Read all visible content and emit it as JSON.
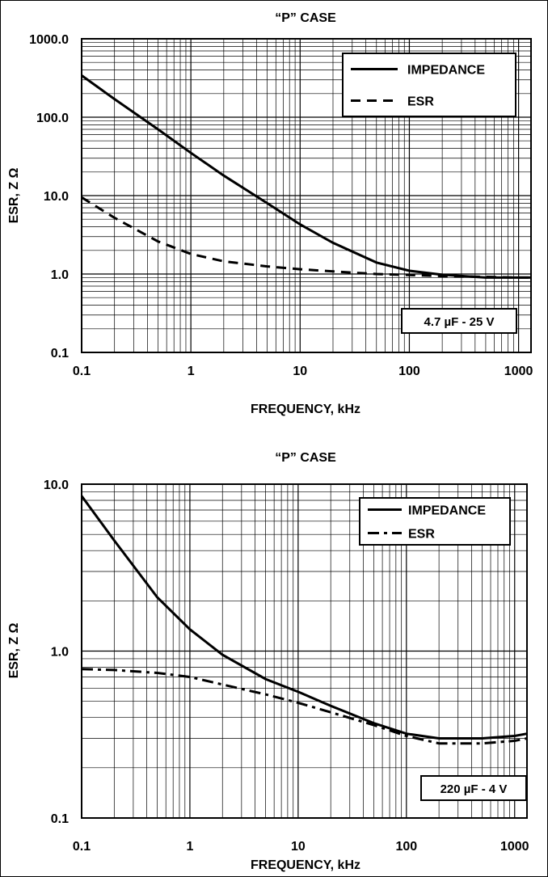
{
  "chart_data": [
    {
      "type": "line",
      "title": "“P” CASE",
      "xlabel": "FREQUENCY, kHz",
      "ylabel": "ESR, Z Ω",
      "x_scale": "log",
      "y_scale": "log",
      "xlim": [
        0.1,
        1300
      ],
      "ylim": [
        0.1,
        1000
      ],
      "x_ticks": [
        "0.1",
        "1",
        "10",
        "100",
        "1000"
      ],
      "y_ticks": [
        "0.1",
        "1.0",
        "10.0",
        "100.0",
        "1000.0"
      ],
      "grid": true,
      "legend_position": "top-right",
      "annotation": "4.7 µF - 25 V",
      "series": [
        {
          "name": "IMPEDANCE",
          "style": "solid",
          "x": [
            0.1,
            0.2,
            0.5,
            1,
            2,
            5,
            10,
            20,
            50,
            100,
            200,
            500,
            1000,
            1300
          ],
          "y": [
            340,
            170,
            70,
            35,
            18,
            8,
            4.3,
            2.5,
            1.4,
            1.1,
            0.98,
            0.9,
            0.9,
            0.9
          ]
        },
        {
          "name": "ESR",
          "style": "dashed",
          "x": [
            0.1,
            0.2,
            0.5,
            1,
            2,
            5,
            10,
            20,
            50,
            100,
            200,
            500,
            1000,
            1300
          ],
          "y": [
            9.5,
            5.2,
            2.6,
            1.8,
            1.45,
            1.25,
            1.15,
            1.08,
            1.0,
            0.97,
            0.94,
            0.92,
            0.9,
            0.9
          ]
        }
      ]
    },
    {
      "type": "line",
      "title": "“P” CASE",
      "xlabel": "FREQUENCY, kHz",
      "ylabel": "ESR, Z Ω",
      "x_scale": "log",
      "y_scale": "log",
      "xlim": [
        0.1,
        1300
      ],
      "ylim": [
        0.1,
        10
      ],
      "x_ticks": [
        "0.1",
        "1",
        "10",
        "100",
        "1000"
      ],
      "y_ticks": [
        "0.1",
        "1.0",
        "10.0"
      ],
      "grid": true,
      "legend_position": "top-right",
      "annotation": "220 µF - 4 V",
      "series": [
        {
          "name": "IMPEDANCE",
          "style": "solid",
          "x": [
            0.1,
            0.2,
            0.5,
            1,
            2,
            5,
            10,
            20,
            50,
            100,
            200,
            500,
            1000,
            1300
          ],
          "y": [
            8.5,
            4.6,
            2.1,
            1.35,
            0.95,
            0.68,
            0.57,
            0.47,
            0.37,
            0.32,
            0.3,
            0.3,
            0.31,
            0.32
          ]
        },
        {
          "name": "ESR",
          "style": "dash-dot",
          "x": [
            0.1,
            0.2,
            0.5,
            1,
            2,
            5,
            10,
            20,
            50,
            100,
            200,
            500,
            1000,
            1300
          ],
          "y": [
            0.78,
            0.77,
            0.74,
            0.7,
            0.63,
            0.55,
            0.49,
            0.43,
            0.36,
            0.31,
            0.28,
            0.28,
            0.29,
            0.3
          ]
        }
      ]
    }
  ]
}
